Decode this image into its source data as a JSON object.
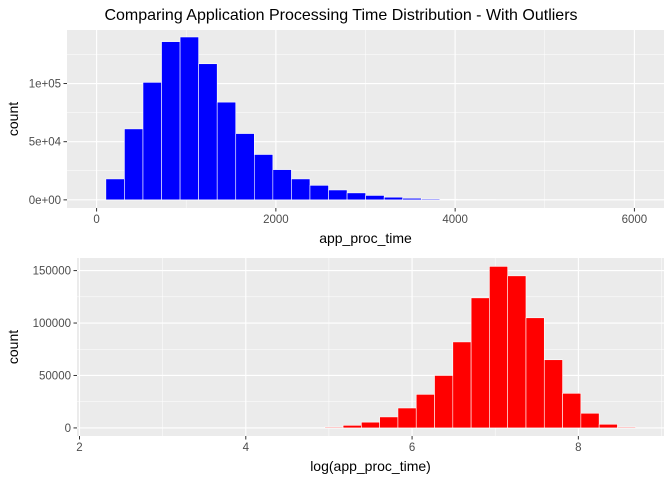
{
  "title": "Comparing Application Processing Time Distribution - With Outliers",
  "colors": {
    "panel_bg": "#EBEBEB",
    "grid_major": "#FFFFFF",
    "tick_label": "#4D4D4D",
    "bar_outline": "#FFFFFF"
  },
  "chart_data": [
    {
      "type": "bar",
      "subtype": "histogram",
      "fill": "#0000FF",
      "xlabel": "app_proc_time",
      "ylabel": "count",
      "xlim": [
        -330,
        6330
      ],
      "ylim": [
        -7000,
        146000
      ],
      "xticks": [
        0,
        2000,
        4000,
        6000
      ],
      "xtick_labels": [
        "0",
        "2000",
        "4000",
        "6000"
      ],
      "yticks": [
        0,
        50000,
        100000
      ],
      "ytick_labels": [
        "0e+00",
        "5e+04",
        "1e+05"
      ],
      "bin_width": 207,
      "bin_centers": [
        207,
        414,
        621,
        828,
        1035,
        1242,
        1449,
        1656,
        1863,
        2070,
        2277,
        2484,
        2691,
        2898,
        3105,
        3312,
        3519,
        3726,
        3933,
        4140,
        4347,
        4554,
        4761,
        4968,
        5175,
        5382,
        5589,
        5796,
        6003,
        6210
      ],
      "counts": [
        18000,
        61000,
        101000,
        136000,
        140000,
        117000,
        84000,
        57000,
        39000,
        26000,
        18000,
        12500,
        8500,
        6000,
        3800,
        2300,
        1400,
        800,
        500,
        300,
        200,
        120,
        80,
        50,
        30,
        20,
        10,
        10,
        5,
        5
      ]
    },
    {
      "type": "bar",
      "subtype": "histogram",
      "fill": "#FF0000",
      "xlabel": "log(app_proc_time)",
      "ylabel": "count",
      "xlim": [
        1.97,
        9.03
      ],
      "ylim": [
        -7700,
        162000
      ],
      "xticks": [
        2,
        4,
        6,
        8
      ],
      "xtick_labels": [
        "2",
        "4",
        "6",
        "8"
      ],
      "yticks": [
        0,
        50000,
        100000,
        150000
      ],
      "ytick_labels": [
        "0",
        "50000",
        "100000",
        "150000"
      ],
      "bin_width": 0.22,
      "bin_centers": [
        2.2,
        2.42,
        2.64,
        2.86,
        3.08,
        3.3,
        3.52,
        3.74,
        3.96,
        4.18,
        4.4,
        4.62,
        4.84,
        5.06,
        5.28,
        5.5,
        5.72,
        5.94,
        6.16,
        6.38,
        6.6,
        6.82,
        7.04,
        7.26,
        7.48,
        7.7,
        7.92,
        8.14,
        8.36,
        8.58,
        8.8
      ],
      "counts": [
        0,
        0,
        0,
        0,
        0,
        0,
        0,
        0,
        0,
        0,
        0,
        0,
        200,
        800,
        2500,
        5500,
        10500,
        19000,
        32000,
        50000,
        82000,
        124000,
        154000,
        145000,
        105000,
        65000,
        33000,
        14000,
        3500,
        800,
        100
      ]
    }
  ]
}
